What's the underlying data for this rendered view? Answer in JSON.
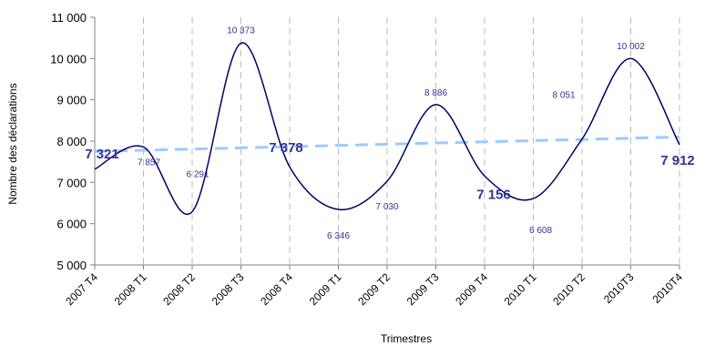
{
  "chart_data": {
    "type": "line",
    "title": "",
    "xlabel": "Trimestres",
    "ylabel": "Nombre  des déclarations",
    "categories": [
      "2007 T4",
      "2008 T1",
      "2008 T2",
      "2008 T3",
      "2008 T4",
      "2009 T1",
      "2009 T2",
      "2009 T3",
      "2009 T4",
      "2010 T1",
      "2010 T2",
      "2010T3",
      "2010T4"
    ],
    "series": [
      {
        "values": [
          7321,
          7857,
          6291,
          10373,
          7378,
          6346,
          7030,
          8886,
          7156,
          6608,
          8051,
          10002,
          7912
        ],
        "labels": [
          "7 321",
          "7 857",
          "6 291",
          "10 373",
          "7 378",
          "6 346",
          "7 030",
          "8 886",
          "7 156",
          "6 608",
          "8 051",
          "10 002",
          "7 912"
        ],
        "color": "#000066"
      }
    ],
    "trend": {
      "start": 7750,
      "end": 8100,
      "color": "#99ccff"
    },
    "ylim": [
      5000,
      11000
    ],
    "yticks": [
      5000,
      6000,
      7000,
      8000,
      9000,
      10000,
      11000
    ],
    "ytick_labels": [
      "5 000",
      "6 000",
      "7 000",
      "8 000",
      "9 000",
      "10 000",
      "11 000"
    ],
    "grid": "vertical-dashed",
    "legend": "none"
  }
}
